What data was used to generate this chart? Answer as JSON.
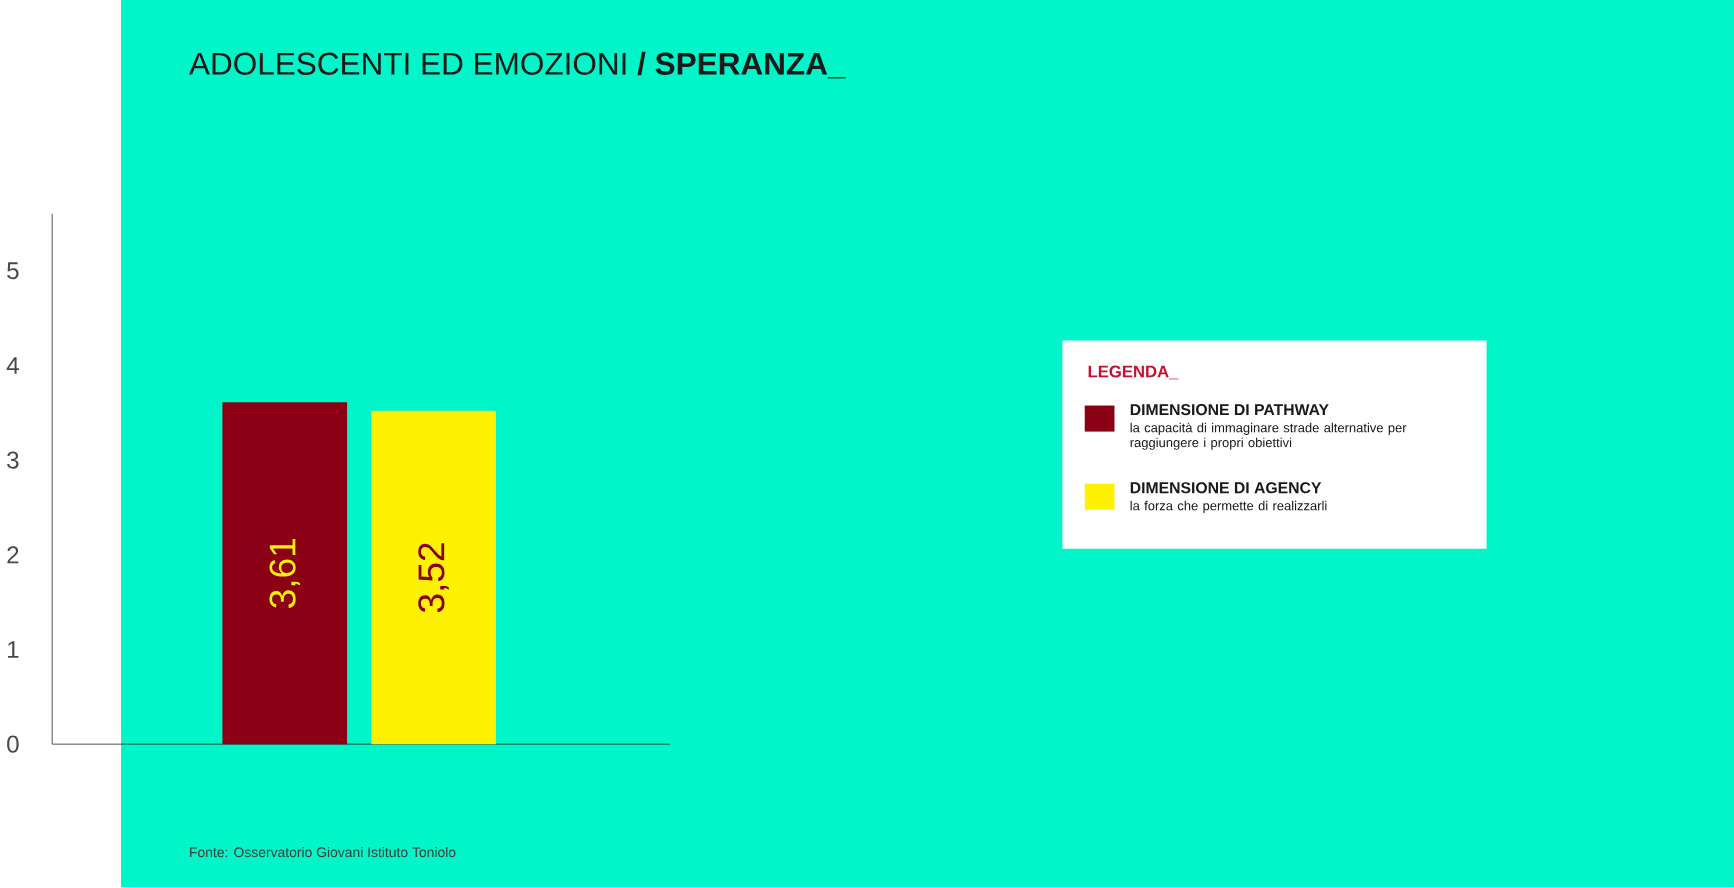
{
  "chart_data": {
    "type": "bar",
    "title": "ADOLESCENTI ED EMOZIONI **/ SPERANZA_**",
    "categories": [
      null,
      null
    ],
    "series": [
      {
        "name": "DIMENSIONE DI PATHWAY",
        "color": "#8b0014",
        "values": [
          3.61,
          null
        ],
        "value_labels": [
          "3,61",
          null
        ]
      },
      {
        "name": "DIMENSIONE DI AGENCY",
        "color": "#fff200",
        "values": [
          null,
          3.52
        ],
        "value_labels": [
          null,
          "3,52"
        ]
      }
    ],
    "legend_title": "LEGENDA_",
    "annotations": [
      "la capacità di immaginare strade alternative per raggiungere i propri obiettivi",
      "la forza che permette di realizzarli",
      "Fonte: Osservatorio Giovani Istituto Toniolo"
    ],
    "ylim": [
      0,
      5.6
    ],
    "yticks": [
      0,
      1,
      2,
      3,
      4,
      5
    ],
    "grid": false,
    "legend": "right"
  }
}
